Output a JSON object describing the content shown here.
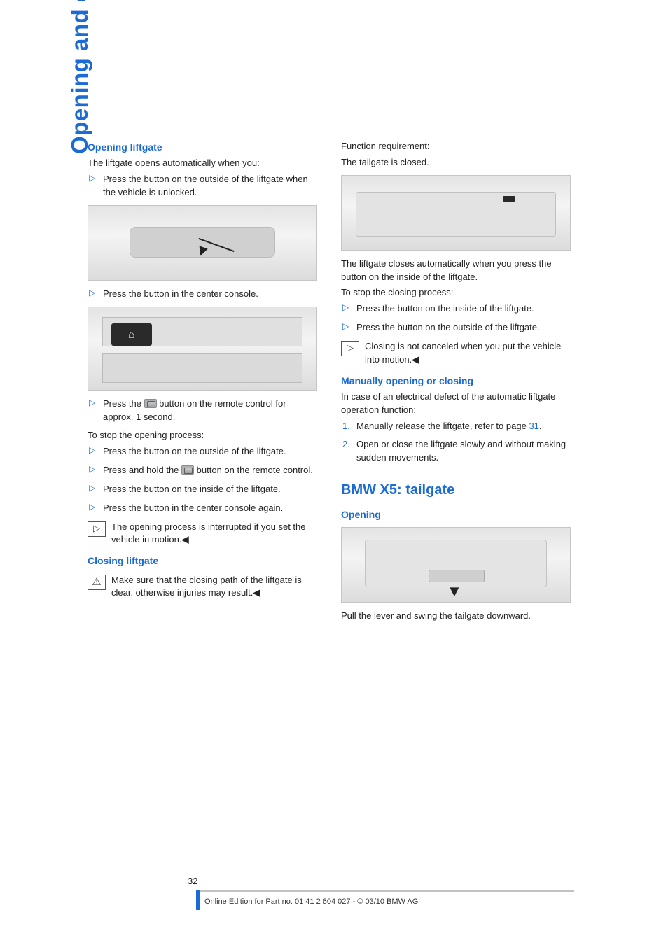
{
  "side_tab": "Opening and closing",
  "left": {
    "h_open": "Opening liftgate",
    "p_open_intro": "The liftgate opens automatically when you:",
    "li_open_1": "Press the button on the outside of the liftgate when the vehicle is unlocked.",
    "li_open_2": "Press the button in the center console.",
    "li_open_3a": "Press the ",
    "li_open_3b": " button on the remote control for approx. 1 second.",
    "p_stop_open": "To stop the opening process:",
    "li_stop_1": "Press the button on the outside of the liftgate.",
    "li_stop_2a": "Press and hold the ",
    "li_stop_2b": " button on the remote control.",
    "li_stop_3": "Press the button on the inside of the liftgate.",
    "li_stop_4": "Press the button in the center console again.",
    "note_open": "The opening process is interrupted if you set the vehicle in motion.",
    "h_close": "Closing liftgate",
    "warn_close": "Make sure that the closing path of the liftgate is clear, otherwise injuries may result.",
    "fig1_code": "",
    "fig2_code": ""
  },
  "right": {
    "p_req_1": "Function requirement:",
    "p_req_2": "The tailgate is closed.",
    "p_auto_close": "The liftgate closes automatically when you press the button on the inside of the liftgate.",
    "p_stop_close": "To stop the closing process:",
    "li_sc_1": "Press the button on the inside of the liftgate.",
    "li_sc_2": "Press the button on the outside of the liftgate.",
    "note_close": "Closing is not canceled when you put the vehicle into motion.",
    "h_manual": "Manually opening or closing",
    "p_manual_intro": "In case of an electrical defect of the automatic liftgate operation function:",
    "ol_1a": "Manually release the liftgate, refer to page ",
    "ol_1_page": "31",
    "ol_1b": ".",
    "ol_2": "Open or close the liftgate slowly and without making sudden movements.",
    "h_tailgate": "BMW X5: tailgate",
    "h_opening": "Opening",
    "p_tail": "Pull the lever and swing the tailgate downward.",
    "fig3_code": "",
    "fig4_code": ""
  },
  "footer": {
    "page": "32",
    "copy": "Online Edition for Part no. 01 41 2 604 027 - © 03/10 BMW AG"
  },
  "colors": {
    "blue": "#1a6bd6",
    "text": "#222222",
    "rule": "#bfc1c3"
  }
}
